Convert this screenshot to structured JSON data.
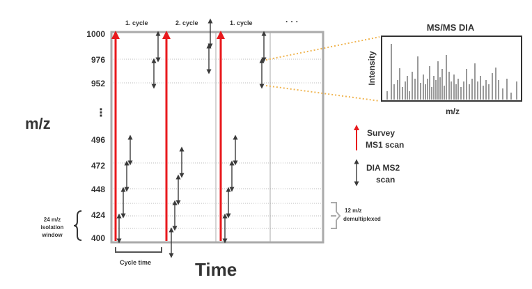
{
  "y_axis": {
    "label": "m/z",
    "ticks": [
      {
        "label": "1000",
        "v": 1000
      },
      {
        "label": "976",
        "v": 976
      },
      {
        "label": "952",
        "v": 952
      },
      {
        "label": "496",
        "v": 496
      },
      {
        "label": "472",
        "v": 472
      },
      {
        "label": "448",
        "v": 448
      },
      {
        "label": "424",
        "v": 424
      },
      {
        "label": "400",
        "v": 400
      }
    ],
    "break_glyph": "⋮"
  },
  "x_axis": {
    "label": "Time"
  },
  "cycle_labels": [
    "1. cycle",
    "2. cycle",
    "1. cycle",
    "· · ·"
  ],
  "cycle_time_label": "Cycle time",
  "isolation_window_label": [
    "24 m/z",
    "isolation",
    "window"
  ],
  "demultiplexed_label": [
    "12 m/z",
    "demultiplexed"
  ],
  "legend": {
    "survey": [
      "Survey",
      "MS1 scan"
    ],
    "dia": [
      "DIA MS2",
      "scan"
    ]
  },
  "inset": {
    "title": "MS/MS DIA",
    "xlabel": "m/z",
    "ylabel": "Intensity"
  },
  "colors": {
    "survey_arrow": "#e8191d",
    "dia_arrow": "#3a3a3a",
    "frame": "#aaaaaa",
    "zoom_dotted": "#f0b552",
    "grid": "#bbbbbb"
  }
}
